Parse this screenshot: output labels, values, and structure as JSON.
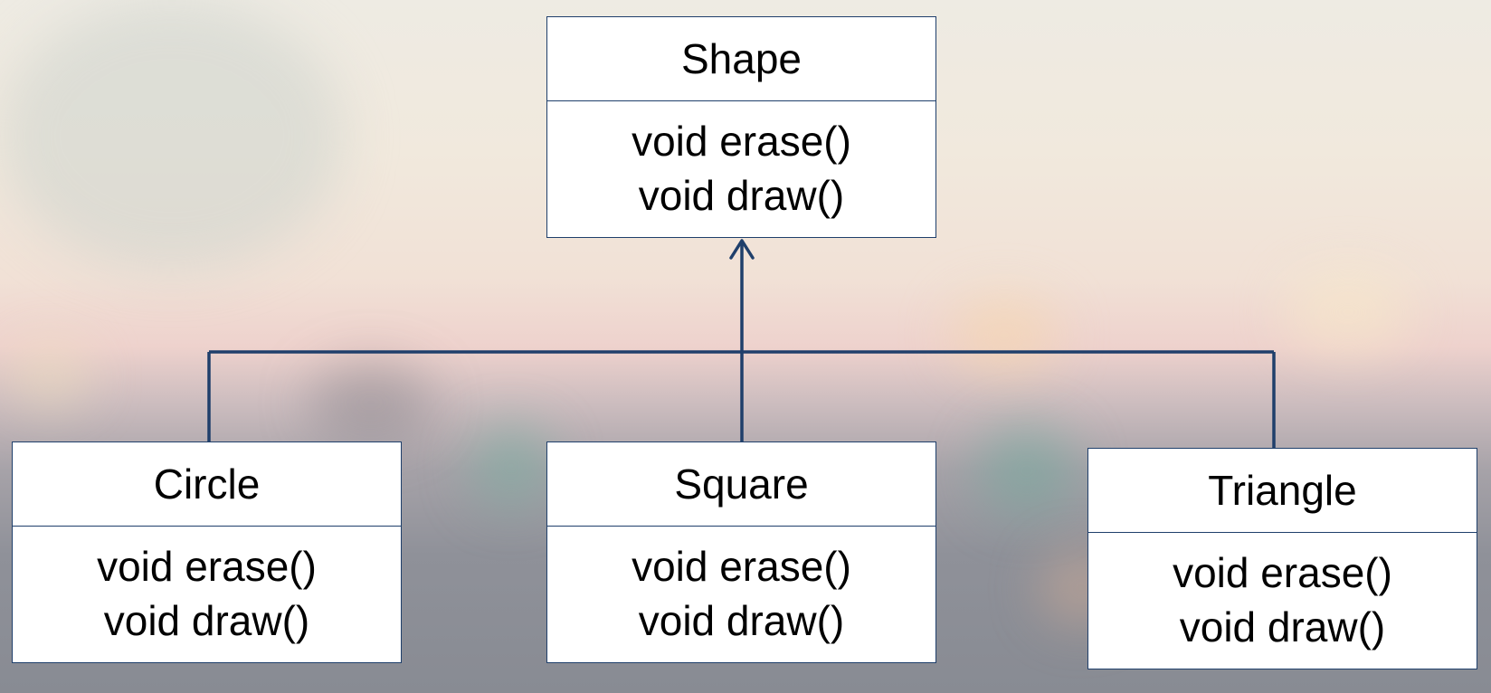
{
  "diagram": {
    "classes": [
      {
        "id": "shape",
        "name": "Shape",
        "methods": [
          "void erase()",
          "void draw()"
        ]
      },
      {
        "id": "circle",
        "name": "Circle",
        "methods": [
          "void erase()",
          "void draw()"
        ]
      },
      {
        "id": "square",
        "name": "Square",
        "methods": [
          "void erase()",
          "void draw()"
        ]
      },
      {
        "id": "triangle",
        "name": "Triangle",
        "methods": [
          "void erase()",
          "void draw()"
        ]
      }
    ],
    "relations": [
      {
        "from": "circle",
        "to": "shape",
        "type": "inheritance"
      },
      {
        "from": "square",
        "to": "shape",
        "type": "inheritance"
      },
      {
        "from": "triangle",
        "to": "shape",
        "type": "inheritance"
      }
    ],
    "colors": {
      "line": "#1f3f6b",
      "box_fill": "#ffffff",
      "text": "#000000"
    }
  }
}
